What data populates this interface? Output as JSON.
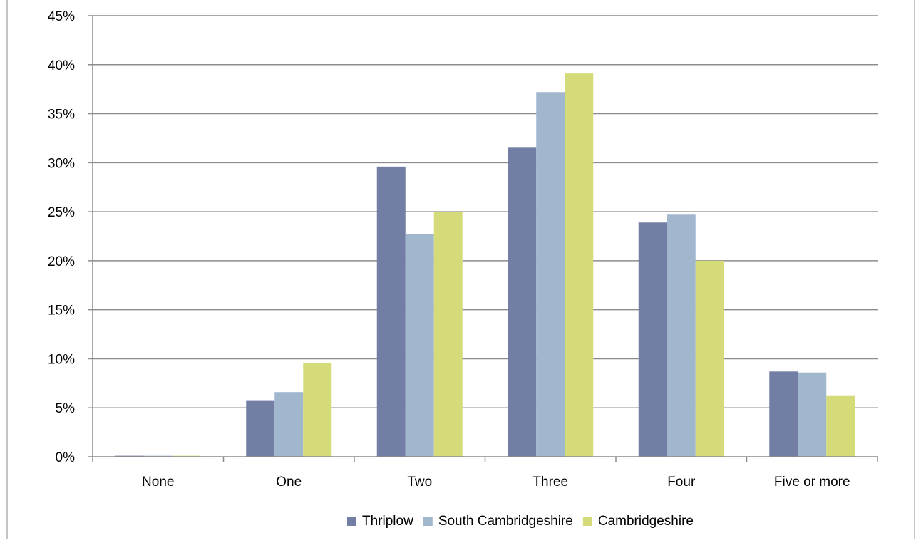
{
  "chart_data": {
    "type": "bar",
    "title": "",
    "xlabel": "",
    "ylabel": "",
    "categories": [
      "None",
      "One",
      "Two",
      "Three",
      "Four",
      "Five or more"
    ],
    "series": [
      {
        "name": "Thriplow",
        "color": "#727ea3",
        "values": [
          0.1,
          5.7,
          29.6,
          31.6,
          23.9,
          8.7
        ]
      },
      {
        "name": "South Cambridgeshire",
        "color": "#a1b7ce",
        "values": [
          0.1,
          6.6,
          22.7,
          37.2,
          24.7,
          8.6
        ]
      },
      {
        "name": "Cambridgeshire",
        "color": "#d6db7a",
        "values": [
          0.1,
          9.6,
          25.0,
          39.1,
          20.0,
          6.2
        ]
      }
    ],
    "ylim": [
      0,
      45
    ],
    "yticks": [
      "0%",
      "5%",
      "10%",
      "15%",
      "20%",
      "25%",
      "30%",
      "35%",
      "40%",
      "45%"
    ],
    "grid": true,
    "legend_position": "bottom"
  }
}
